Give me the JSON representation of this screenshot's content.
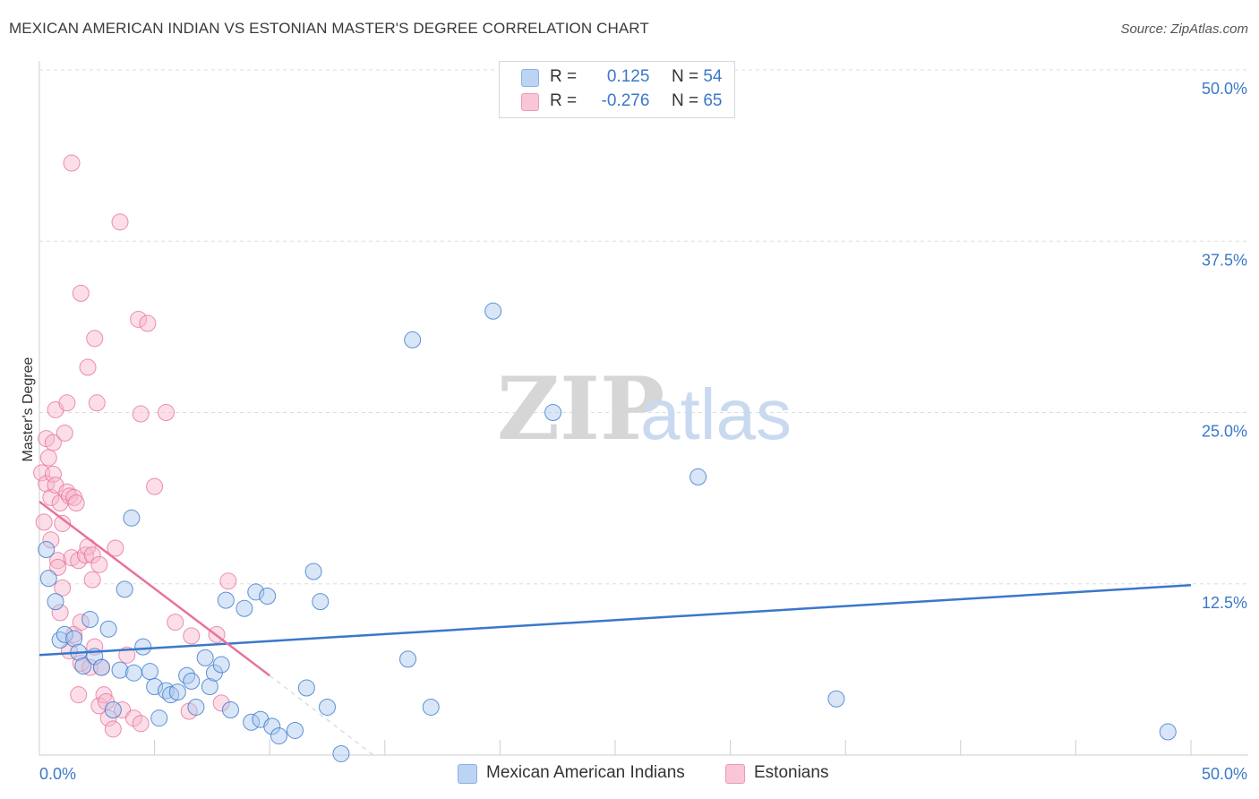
{
  "title": "MEXICAN AMERICAN INDIAN VS ESTONIAN MASTER'S DEGREE CORRELATION CHART",
  "source": "Source: ZipAtlas.com",
  "watermark": {
    "zip": "ZIP",
    "atlas": "atlas"
  },
  "legend": {
    "rows": [
      {
        "r_label": "R =",
        "r_value": "0.125",
        "n_label": "N =",
        "n_value": "54"
      },
      {
        "r_label": "R =",
        "r_value": "-0.276",
        "n_label": "N =",
        "n_value": "65"
      }
    ]
  },
  "colors": {
    "blue": "#3a78c9",
    "blue_fill": "#a9c8f0",
    "pink": "#e8739a",
    "pink_fill": "#f6b6cb",
    "grid": "#dddddd",
    "tick_label": "#3a78c9"
  },
  "chart_data": {
    "type": "scatter",
    "title": "MEXICAN AMERICAN INDIAN VS ESTONIAN MASTER'S DEGREE CORRELATION CHART",
    "xlabel": "",
    "ylabel": "Master's Degree",
    "xlim": [
      0,
      50
    ],
    "ylim": [
      0,
      50
    ],
    "x_tick_labels": [
      "0.0%",
      "50.0%"
    ],
    "y_ticks": [
      12.5,
      25.0,
      37.5,
      50.0
    ],
    "y_tick_labels": [
      "12.5%",
      "25.0%",
      "37.5%",
      "50.0%"
    ],
    "series": [
      {
        "name": "Mexican American Indians",
        "color": "#3a78c9",
        "trend": {
          "x": [
            0,
            50
          ],
          "y": [
            7.3,
            12.4
          ]
        },
        "points": [
          [
            0.3,
            15.0
          ],
          [
            0.4,
            12.9
          ],
          [
            0.7,
            11.2
          ],
          [
            0.9,
            8.4
          ],
          [
            1.1,
            8.8
          ],
          [
            1.5,
            8.5
          ],
          [
            1.7,
            7.5
          ],
          [
            1.9,
            6.5
          ],
          [
            2.2,
            9.9
          ],
          [
            2.4,
            7.2
          ],
          [
            2.7,
            6.4
          ],
          [
            3.0,
            9.2
          ],
          [
            3.2,
            3.3
          ],
          [
            3.5,
            6.2
          ],
          [
            3.7,
            12.1
          ],
          [
            4.0,
            17.3
          ],
          [
            4.1,
            6.0
          ],
          [
            4.5,
            7.9
          ],
          [
            4.8,
            6.1
          ],
          [
            5.0,
            5.0
          ],
          [
            5.2,
            2.7
          ],
          [
            5.5,
            4.7
          ],
          [
            5.7,
            4.4
          ],
          [
            6.0,
            4.6
          ],
          [
            6.4,
            5.8
          ],
          [
            6.6,
            5.4
          ],
          [
            6.8,
            3.5
          ],
          [
            7.2,
            7.1
          ],
          [
            7.4,
            5.0
          ],
          [
            7.6,
            6.0
          ],
          [
            7.9,
            6.6
          ],
          [
            8.1,
            11.3
          ],
          [
            8.3,
            3.3
          ],
          [
            8.9,
            10.7
          ],
          [
            9.2,
            2.4
          ],
          [
            9.4,
            11.9
          ],
          [
            9.6,
            2.6
          ],
          [
            9.9,
            11.6
          ],
          [
            10.1,
            2.1
          ],
          [
            10.4,
            1.4
          ],
          [
            11.1,
            1.8
          ],
          [
            11.6,
            4.9
          ],
          [
            11.9,
            13.4
          ],
          [
            12.2,
            11.2
          ],
          [
            12.5,
            3.5
          ],
          [
            13.1,
            0.1
          ],
          [
            16.0,
            7.0
          ],
          [
            16.2,
            30.3
          ],
          [
            17.0,
            3.5
          ],
          [
            19.7,
            32.4
          ],
          [
            22.3,
            25.0
          ],
          [
            28.6,
            20.3
          ],
          [
            34.6,
            4.1
          ],
          [
            49.0,
            1.7
          ]
        ]
      },
      {
        "name": "Estonians",
        "color": "#e8739a",
        "trend": {
          "x": [
            0,
            10.0
          ],
          "y": [
            18.5,
            5.8
          ]
        },
        "trend_dash": {
          "x": [
            10.0,
            14.5
          ],
          "y": [
            5.8,
            0.0
          ]
        },
        "points": [
          [
            0.1,
            20.6
          ],
          [
            0.2,
            17.0
          ],
          [
            0.3,
            23.1
          ],
          [
            0.3,
            19.8
          ],
          [
            0.4,
            21.7
          ],
          [
            0.5,
            18.8
          ],
          [
            0.5,
            15.7
          ],
          [
            0.6,
            22.8
          ],
          [
            0.6,
            20.5
          ],
          [
            0.7,
            25.2
          ],
          [
            0.7,
            19.7
          ],
          [
            0.8,
            14.2
          ],
          [
            0.8,
            13.7
          ],
          [
            0.9,
            18.4
          ],
          [
            0.9,
            10.4
          ],
          [
            1.0,
            16.9
          ],
          [
            1.0,
            12.2
          ],
          [
            1.1,
            23.5
          ],
          [
            1.2,
            25.7
          ],
          [
            1.2,
            19.2
          ],
          [
            1.3,
            18.9
          ],
          [
            1.3,
            7.6
          ],
          [
            1.4,
            43.2
          ],
          [
            1.4,
            14.4
          ],
          [
            1.5,
            18.8
          ],
          [
            1.5,
            8.8
          ],
          [
            1.6,
            18.4
          ],
          [
            1.7,
            14.2
          ],
          [
            1.7,
            4.4
          ],
          [
            1.8,
            9.7
          ],
          [
            1.8,
            6.7
          ],
          [
            1.8,
            33.7
          ],
          [
            2.0,
            14.6
          ],
          [
            2.1,
            15.2
          ],
          [
            2.1,
            28.3
          ],
          [
            2.2,
            6.4
          ],
          [
            2.3,
            14.6
          ],
          [
            2.3,
            12.8
          ],
          [
            2.4,
            30.4
          ],
          [
            2.4,
            7.9
          ],
          [
            2.5,
            25.7
          ],
          [
            2.6,
            13.9
          ],
          [
            2.6,
            3.6
          ],
          [
            2.7,
            6.4
          ],
          [
            2.8,
            4.4
          ],
          [
            2.9,
            3.9
          ],
          [
            3.0,
            2.7
          ],
          [
            3.2,
            1.9
          ],
          [
            3.3,
            15.1
          ],
          [
            3.5,
            38.9
          ],
          [
            3.6,
            3.3
          ],
          [
            3.8,
            7.3
          ],
          [
            4.1,
            2.7
          ],
          [
            4.3,
            31.8
          ],
          [
            4.4,
            2.3
          ],
          [
            4.4,
            24.9
          ],
          [
            4.7,
            31.5
          ],
          [
            5.0,
            19.6
          ],
          [
            5.5,
            25.0
          ],
          [
            5.9,
            9.7
          ],
          [
            6.5,
            3.2
          ],
          [
            6.6,
            8.7
          ],
          [
            7.7,
            8.8
          ],
          [
            7.9,
            3.8
          ],
          [
            8.2,
            12.7
          ]
        ]
      }
    ]
  },
  "bottom_legend": [
    {
      "label": "Mexican American Indians"
    },
    {
      "label": "Estonians"
    }
  ]
}
